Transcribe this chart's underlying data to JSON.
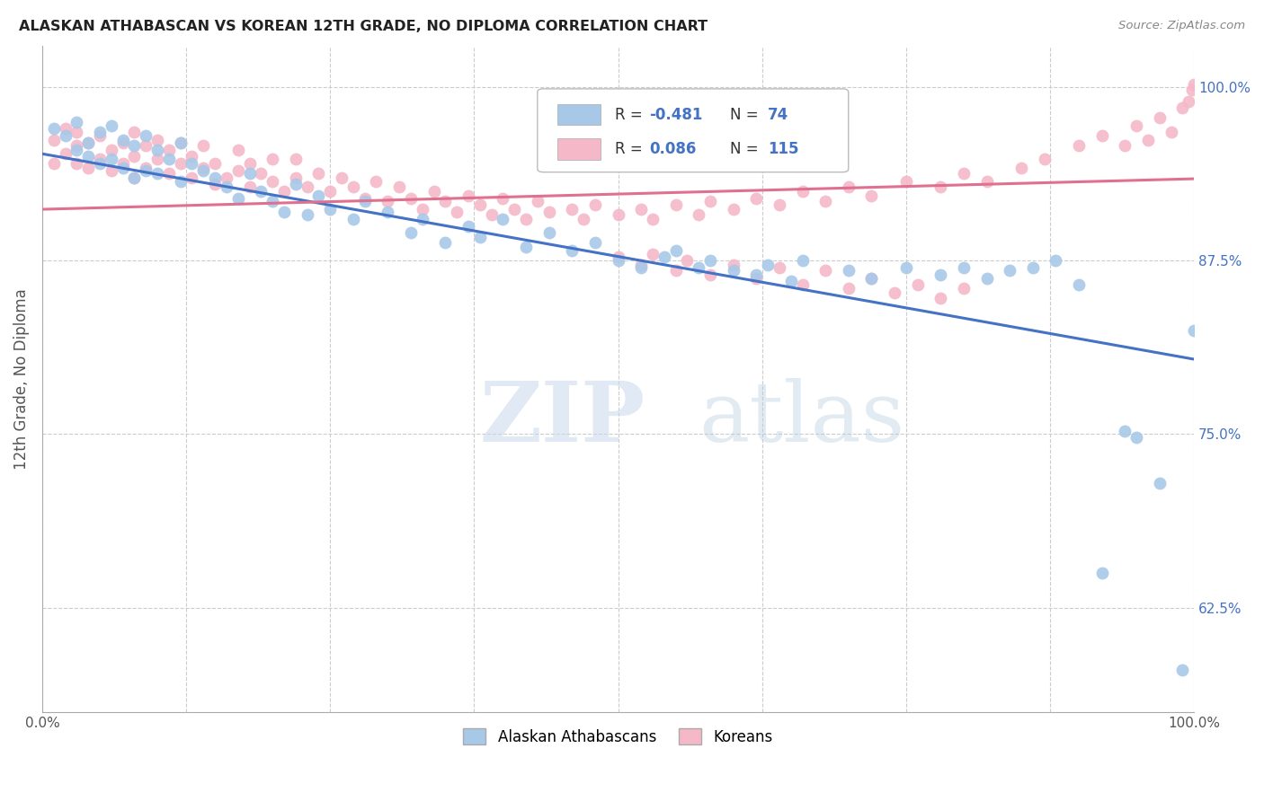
{
  "title": "ALASKAN ATHABASCAN VS KOREAN 12TH GRADE, NO DIPLOMA CORRELATION CHART",
  "source_text": "Source: ZipAtlas.com",
  "ylabel": "12th Grade, No Diploma",
  "xlim": [
    0.0,
    1.0
  ],
  "ylim": [
    0.55,
    1.03
  ],
  "yticks": [
    0.625,
    0.75,
    0.875,
    1.0
  ],
  "ytick_labels": [
    "62.5%",
    "75.0%",
    "87.5%",
    "100.0%"
  ],
  "xticks": [
    0.0,
    0.125,
    0.25,
    0.375,
    0.5,
    0.625,
    0.75,
    0.875,
    1.0
  ],
  "xtick_labels": [
    "0.0%",
    "",
    "",
    "",
    "",
    "",
    "",
    "",
    "100.0%"
  ],
  "legend_entries": [
    "Alaskan Athabascans",
    "Koreans"
  ],
  "blue_color": "#a8c8e8",
  "pink_color": "#f4b8c8",
  "blue_line_color": "#4472c4",
  "pink_line_color": "#e07090",
  "blue_intercept": 0.952,
  "blue_slope": -0.148,
  "pink_intercept": 0.912,
  "pink_slope": 0.022,
  "watermark_zip": "ZIP",
  "watermark_atlas": "atlas",
  "blue_points_x": [
    0.01,
    0.02,
    0.03,
    0.03,
    0.04,
    0.04,
    0.05,
    0.05,
    0.06,
    0.06,
    0.07,
    0.07,
    0.08,
    0.08,
    0.09,
    0.09,
    0.1,
    0.1,
    0.11,
    0.12,
    0.12,
    0.13,
    0.14,
    0.15,
    0.16,
    0.17,
    0.18,
    0.19,
    0.2,
    0.21,
    0.22,
    0.23,
    0.24,
    0.25,
    0.27,
    0.28,
    0.3,
    0.32,
    0.33,
    0.35,
    0.37,
    0.38,
    0.4,
    0.42,
    0.44,
    0.46,
    0.48,
    0.5,
    0.52,
    0.54,
    0.55,
    0.57,
    0.58,
    0.6,
    0.62,
    0.63,
    0.65,
    0.66,
    0.7,
    0.72,
    0.75,
    0.78,
    0.8,
    0.82,
    0.84,
    0.86,
    0.88,
    0.9,
    0.92,
    0.94,
    0.95,
    0.97,
    0.99,
    1.0
  ],
  "blue_points_y": [
    0.97,
    0.965,
    0.975,
    0.955,
    0.96,
    0.95,
    0.968,
    0.945,
    0.972,
    0.948,
    0.962,
    0.942,
    0.958,
    0.935,
    0.965,
    0.94,
    0.955,
    0.938,
    0.948,
    0.96,
    0.932,
    0.945,
    0.94,
    0.935,
    0.928,
    0.92,
    0.938,
    0.925,
    0.918,
    0.91,
    0.93,
    0.908,
    0.922,
    0.912,
    0.905,
    0.918,
    0.91,
    0.895,
    0.905,
    0.888,
    0.9,
    0.892,
    0.905,
    0.885,
    0.895,
    0.882,
    0.888,
    0.875,
    0.87,
    0.878,
    0.882,
    0.87,
    0.875,
    0.868,
    0.865,
    0.872,
    0.86,
    0.875,
    0.868,
    0.862,
    0.87,
    0.865,
    0.87,
    0.862,
    0.868,
    0.87,
    0.875,
    0.858,
    0.65,
    0.752,
    0.748,
    0.715,
    0.58,
    0.825
  ],
  "pink_points_x": [
    0.01,
    0.01,
    0.02,
    0.02,
    0.03,
    0.03,
    0.03,
    0.04,
    0.04,
    0.05,
    0.05,
    0.06,
    0.06,
    0.07,
    0.07,
    0.08,
    0.08,
    0.08,
    0.09,
    0.09,
    0.1,
    0.1,
    0.11,
    0.11,
    0.12,
    0.12,
    0.13,
    0.13,
    0.14,
    0.14,
    0.15,
    0.15,
    0.16,
    0.17,
    0.17,
    0.18,
    0.18,
    0.19,
    0.2,
    0.2,
    0.21,
    0.22,
    0.22,
    0.23,
    0.24,
    0.25,
    0.26,
    0.27,
    0.28,
    0.29,
    0.3,
    0.31,
    0.32,
    0.33,
    0.34,
    0.35,
    0.36,
    0.37,
    0.38,
    0.39,
    0.4,
    0.41,
    0.42,
    0.43,
    0.44,
    0.46,
    0.47,
    0.48,
    0.5,
    0.52,
    0.53,
    0.55,
    0.57,
    0.58,
    0.6,
    0.62,
    0.64,
    0.66,
    0.68,
    0.7,
    0.72,
    0.75,
    0.78,
    0.8,
    0.82,
    0.85,
    0.87,
    0.9,
    0.92,
    0.94,
    0.95,
    0.96,
    0.97,
    0.98,
    0.99,
    0.995,
    0.998,
    1.0,
    0.5,
    0.52,
    0.53,
    0.55,
    0.56,
    0.58,
    0.6,
    0.62,
    0.64,
    0.66,
    0.68,
    0.7,
    0.72,
    0.74,
    0.76,
    0.78,
    0.8
  ],
  "pink_points_y": [
    0.945,
    0.962,
    0.952,
    0.97,
    0.945,
    0.958,
    0.968,
    0.942,
    0.96,
    0.948,
    0.965,
    0.94,
    0.955,
    0.945,
    0.96,
    0.935,
    0.95,
    0.968,
    0.942,
    0.958,
    0.948,
    0.962,
    0.938,
    0.955,
    0.945,
    0.96,
    0.935,
    0.95,
    0.942,
    0.958,
    0.93,
    0.945,
    0.935,
    0.94,
    0.955,
    0.928,
    0.945,
    0.938,
    0.932,
    0.948,
    0.925,
    0.935,
    0.948,
    0.928,
    0.938,
    0.925,
    0.935,
    0.928,
    0.92,
    0.932,
    0.918,
    0.928,
    0.92,
    0.912,
    0.925,
    0.918,
    0.91,
    0.922,
    0.915,
    0.908,
    0.92,
    0.912,
    0.905,
    0.918,
    0.91,
    0.912,
    0.905,
    0.915,
    0.908,
    0.912,
    0.905,
    0.915,
    0.908,
    0.918,
    0.912,
    0.92,
    0.915,
    0.925,
    0.918,
    0.928,
    0.922,
    0.932,
    0.928,
    0.938,
    0.932,
    0.942,
    0.948,
    0.958,
    0.965,
    0.958,
    0.972,
    0.962,
    0.978,
    0.968,
    0.985,
    0.99,
    0.998,
    1.002,
    0.878,
    0.872,
    0.88,
    0.868,
    0.875,
    0.865,
    0.872,
    0.862,
    0.87,
    0.858,
    0.868,
    0.855,
    0.862,
    0.852,
    0.858,
    0.848,
    0.855
  ]
}
